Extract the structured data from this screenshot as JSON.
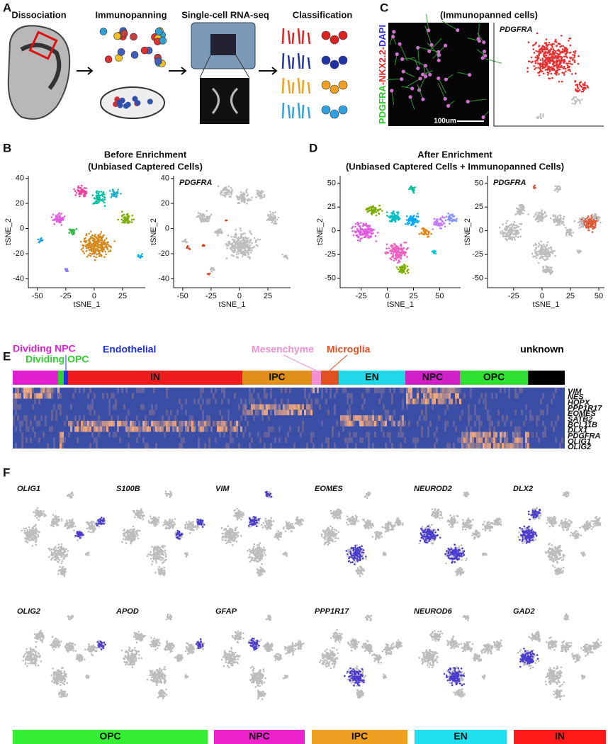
{
  "panels": {
    "A": {
      "label": "A",
      "steps": [
        "Dissociation",
        "Immunopanning",
        "Single-cell RNA-seq",
        "Classification"
      ]
    },
    "C": {
      "label": "C",
      "title": "(Immunopanned cells)",
      "stain": [
        {
          "text": "PDGFRA",
          "color": "#22cc22"
        },
        {
          "text": "-NKX2.2-",
          "color": "#ee2020"
        },
        {
          "text": "DAPI",
          "color": "#2a2aee"
        }
      ],
      "scale_bar": "100um",
      "gene": "PDGFRA"
    },
    "B": {
      "label": "B",
      "title": "Before Enrichment",
      "subtitle": "(Unbiased Captered Cells)",
      "plots": [
        {
          "xlabel": "tSNE_1",
          "ylabel": "tSNE_2",
          "xlim": [
            -58,
            45
          ],
          "ylim": [
            -47,
            42
          ],
          "xticks": [
            -50,
            -25,
            0,
            25
          ],
          "yticks": [
            40,
            20,
            0,
            -20,
            -40
          ]
        },
        {
          "gene": "PDGFRA",
          "xlabel": "tSNE_1",
          "ylabel": "tSNE_2",
          "xlim": [
            -58,
            45
          ],
          "ylim": [
            -47,
            42
          ],
          "xticks": [
            -50,
            -25,
            0,
            25
          ],
          "yticks": [
            40,
            20,
            0,
            -20,
            -40
          ]
        }
      ]
    },
    "D": {
      "label": "D",
      "title": "After Enrichment",
      "subtitle": "(Unbiased Captered Cells + Immunopanned Cells)",
      "plots": [
        {
          "xlabel": "tSNE_1",
          "ylabel": "tSNE_2",
          "xlim": [
            -45,
            70
          ],
          "ylim": [
            -60,
            58
          ],
          "xticks": [
            -25,
            0,
            25,
            50
          ],
          "yticks": [
            50,
            25,
            0,
            -25,
            -50
          ]
        },
        {
          "gene": "PDGFRA",
          "xlabel": "tSNE_1",
          "ylabel": "tSNE_2",
          "xlim": [
            -48,
            55
          ],
          "ylim": [
            -60,
            58
          ],
          "xticks": [
            -25,
            0,
            25,
            50
          ],
          "yticks": [
            50,
            25,
            0,
            -25,
            -50
          ]
        }
      ]
    },
    "E": {
      "label": "E",
      "clusters": [
        {
          "name": "Dividing NPC",
          "color": "#e020d0"
        },
        {
          "name": "Dividing OPC",
          "color": "#30d030"
        },
        {
          "name": "Endothelial",
          "color": "#2030e0"
        },
        {
          "name": "IN",
          "color": "#ee1c1c"
        },
        {
          "name": "IPC",
          "color": "#e0901a"
        },
        {
          "name": "Mesenchyme",
          "color": "#f090d0"
        },
        {
          "name": "Microglia",
          "color": "#e05020"
        },
        {
          "name": "EN",
          "color": "#20d8e8"
        },
        {
          "name": "NPC",
          "color": "#d020c8"
        },
        {
          "name": "OPC",
          "color": "#30e030"
        },
        {
          "name": "unknown",
          "color": "#000000"
        }
      ],
      "genes": [
        "VIM",
        "NES",
        "HOPX",
        "PPP1R17",
        "EOMES",
        "SATB2",
        "BCL11B",
        "DLX1",
        "PDGFRA",
        "OLIG1",
        "OLIG2"
      ]
    },
    "F": {
      "label": "F",
      "genes": [
        [
          "OLIG1",
          "S100B",
          "VIM",
          "EOMES",
          "NEUROD2",
          "DLX2"
        ],
        [
          "OLIG2",
          "APOD",
          "GFAP",
          "PPP1R17",
          "NEUROD6",
          "GAD2"
        ]
      ],
      "groups": [
        {
          "name": "OPC",
          "color": "#33ee33"
        },
        {
          "name": "NPC",
          "color": "#ee22cc"
        },
        {
          "name": "IPC",
          "color": "#f0a020"
        },
        {
          "name": "EN",
          "color": "#20e0f0"
        },
        {
          "name": "IN",
          "color": "#ff1a1a"
        }
      ]
    }
  }
}
